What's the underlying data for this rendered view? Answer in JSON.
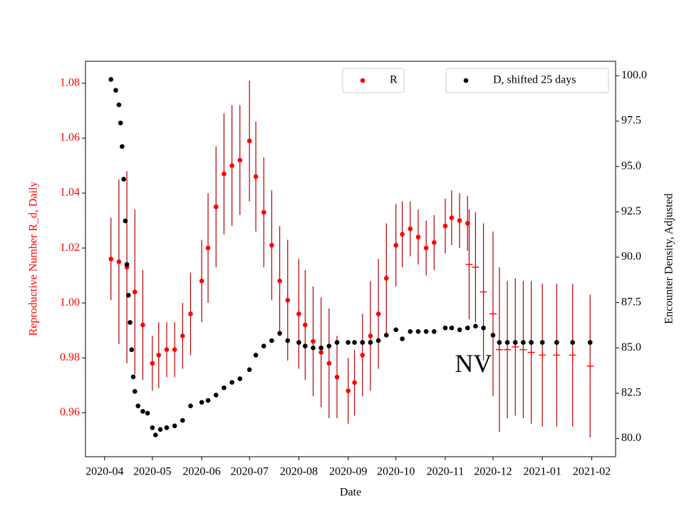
{
  "chart_data": {
    "type": "scatter",
    "xlabel": "Date",
    "ylabel": "Reproductive Number R_d, Daily",
    "y2label": "Encounter Density, Adjusted",
    "ylabel_color": "#ff0000",
    "annotation": {
      "text": "NV",
      "x": "2020-11-07",
      "y": 0.977
    },
    "xlim": [
      "2020-03-20",
      "2021-02-16"
    ],
    "xticks": [
      "2020-04",
      "2020-05",
      "2020-06",
      "2020-07",
      "2020-08",
      "2020-09",
      "2020-10",
      "2020-11",
      "2020-12",
      "2021-01",
      "2021-02"
    ],
    "ylim": [
      0.944,
      1.088
    ],
    "yticks": [
      0.96,
      0.98,
      {
        "value": 1,
        "label": "1.00"
      },
      1.02,
      1.04,
      1.06,
      1.08
    ],
    "y2lim": [
      79.0,
      100.8
    ],
    "y2ticks": [
      {
        "value": 80,
        "label": "80.0"
      },
      82.5,
      {
        "value": 85,
        "label": "85.0"
      },
      87.5,
      {
        "value": 90,
        "label": "90.0"
      },
      92.5,
      {
        "value": 95,
        "label": "95.0"
      },
      97.5,
      {
        "value": 100,
        "label": "100.0"
      }
    ],
    "legend": "upper center",
    "legend2": "upper right",
    "series": [
      {
        "name": "R",
        "color": "#ff0000",
        "marker": "o",
        "error_color": "#b00000",
        "x": [
          "2020-04-05",
          "2020-04-10",
          "2020-04-15",
          "2020-04-20",
          "2020-04-25",
          "2020-05-01",
          "2020-05-05",
          "2020-05-10",
          "2020-05-15",
          "2020-05-20",
          "2020-05-25",
          "2020-06-01",
          "2020-06-05",
          "2020-06-10",
          "2020-06-15",
          "2020-06-20",
          "2020-06-25",
          "2020-07-01",
          "2020-07-05",
          "2020-07-10",
          "2020-07-15",
          "2020-07-20",
          "2020-07-25",
          "2020-08-01",
          "2020-08-05",
          "2020-08-10",
          "2020-08-15",
          "2020-08-20",
          "2020-08-25",
          "2020-09-01",
          "2020-09-05",
          "2020-09-10",
          "2020-09-15",
          "2020-09-20",
          "2020-09-25",
          "2020-10-01",
          "2020-10-05",
          "2020-10-10",
          "2020-10-15",
          "2020-10-20",
          "2020-10-25",
          "2020-11-01",
          "2020-11-05",
          "2020-11-10",
          "2020-11-15"
        ],
        "values": [
          1.016,
          1.015,
          1.013,
          1.004,
          0.992,
          0.978,
          0.981,
          0.983,
          0.983,
          0.988,
          0.996,
          1.008,
          1.02,
          1.035,
          1.047,
          1.05,
          1.052,
          1.059,
          1.046,
          1.033,
          1.021,
          1.008,
          1.001,
          0.996,
          0.992,
          0.986,
          0.982,
          0.978,
          0.973,
          0.968,
          0.971,
          0.981,
          0.988,
          0.996,
          1.009,
          1.021,
          1.025,
          1.027,
          1.024,
          1.02,
          1.022,
          1.028,
          1.031,
          1.03,
          1.029
        ],
        "errors": [
          0.015,
          0.03,
          0.035,
          0.03,
          0.02,
          0.01,
          0.012,
          0.01,
          0.01,
          0.012,
          0.015,
          0.015,
          0.02,
          0.022,
          0.022,
          0.022,
          0.02,
          0.022,
          0.02,
          0.02,
          0.02,
          0.02,
          0.022,
          0.02,
          0.02,
          0.02,
          0.02,
          0.02,
          0.015,
          0.012,
          0.012,
          0.015,
          0.02,
          0.02,
          0.02,
          0.015,
          0.012,
          0.01,
          0.01,
          0.01,
          0.01,
          0.01,
          0.01,
          0.01,
          0.01
        ]
      },
      {
        "color": "#ff0000",
        "marker": "+",
        "error_color": "#b00000",
        "x": [
          "2020-11-16",
          "2020-11-20",
          "2020-11-25",
          "2020-12-01",
          "2020-12-05",
          "2020-12-10",
          "2020-12-15",
          "2020-12-20",
          "2020-12-25",
          "2021-01-01",
          "2021-01-10",
          "2021-01-20",
          "2021-01-31"
        ],
        "values": [
          1.014,
          1.013,
          1.004,
          0.996,
          0.983,
          0.983,
          0.984,
          0.983,
          0.982,
          0.981,
          0.981,
          0.981,
          0.977
        ],
        "errors": [
          0.02,
          0.02,
          0.025,
          0.03,
          0.03,
          0.025,
          0.025,
          0.025,
          0.026,
          0.026,
          0.026,
          0.026,
          0.026
        ]
      },
      {
        "name": "D, shifted 25 days",
        "color": "#000000",
        "marker": "o",
        "axis": "y2",
        "x": [
          "2020-04-05",
          "2020-04-08",
          "2020-04-10",
          "2020-04-11",
          "2020-04-12",
          "2020-04-13",
          "2020-04-14",
          "2020-04-15",
          "2020-04-16",
          "2020-04-17",
          "2020-04-18",
          "2020-04-19",
          "2020-04-20",
          "2020-04-22",
          "2020-04-25",
          "2020-04-28",
          "2020-05-01",
          "2020-05-03",
          "2020-05-06",
          "2020-05-10",
          "2020-05-15",
          "2020-05-20",
          "2020-05-25",
          "2020-06-01",
          "2020-06-05",
          "2020-06-10",
          "2020-06-15",
          "2020-06-20",
          "2020-06-25",
          "2020-07-01",
          "2020-07-05",
          "2020-07-10",
          "2020-07-15",
          "2020-07-20",
          "2020-07-25",
          "2020-08-01",
          "2020-08-05",
          "2020-08-10",
          "2020-08-15",
          "2020-08-20",
          "2020-08-25",
          "2020-09-01",
          "2020-09-05",
          "2020-09-10",
          "2020-09-15",
          "2020-09-20",
          "2020-09-25",
          "2020-10-01",
          "2020-10-05",
          "2020-10-10",
          "2020-10-15",
          "2020-10-20",
          "2020-10-25",
          "2020-11-01",
          "2020-11-05",
          "2020-11-10",
          "2020-11-15",
          "2020-11-20",
          "2020-11-25",
          "2020-12-01",
          "2020-12-05",
          "2020-12-10",
          "2020-12-15",
          "2020-12-20",
          "2020-12-25",
          "2021-01-01",
          "2021-01-10",
          "2021-01-20",
          "2021-01-31"
        ],
        "values": [
          99.8,
          99.2,
          98.4,
          97.4,
          96.1,
          94.3,
          92.0,
          89.6,
          87.9,
          86.4,
          84.9,
          83.4,
          82.6,
          81.8,
          81.5,
          81.4,
          80.6,
          80.2,
          80.5,
          80.6,
          80.7,
          81.0,
          81.8,
          82.0,
          82.1,
          82.4,
          82.8,
          83.1,
          83.3,
          83.8,
          84.6,
          85.1,
          85.4,
          85.8,
          85.4,
          85.3,
          85.1,
          85.0,
          85.0,
          85.1,
          85.3,
          85.3,
          85.3,
          85.3,
          85.3,
          85.4,
          85.7,
          86.0,
          85.5,
          85.9,
          85.9,
          85.9,
          85.9,
          86.1,
          86.1,
          86.0,
          86.1,
          86.2,
          86.1,
          85.7,
          85.3,
          85.3,
          85.3,
          85.3,
          85.3,
          85.3,
          85.3,
          85.3,
          85.3
        ]
      }
    ]
  }
}
